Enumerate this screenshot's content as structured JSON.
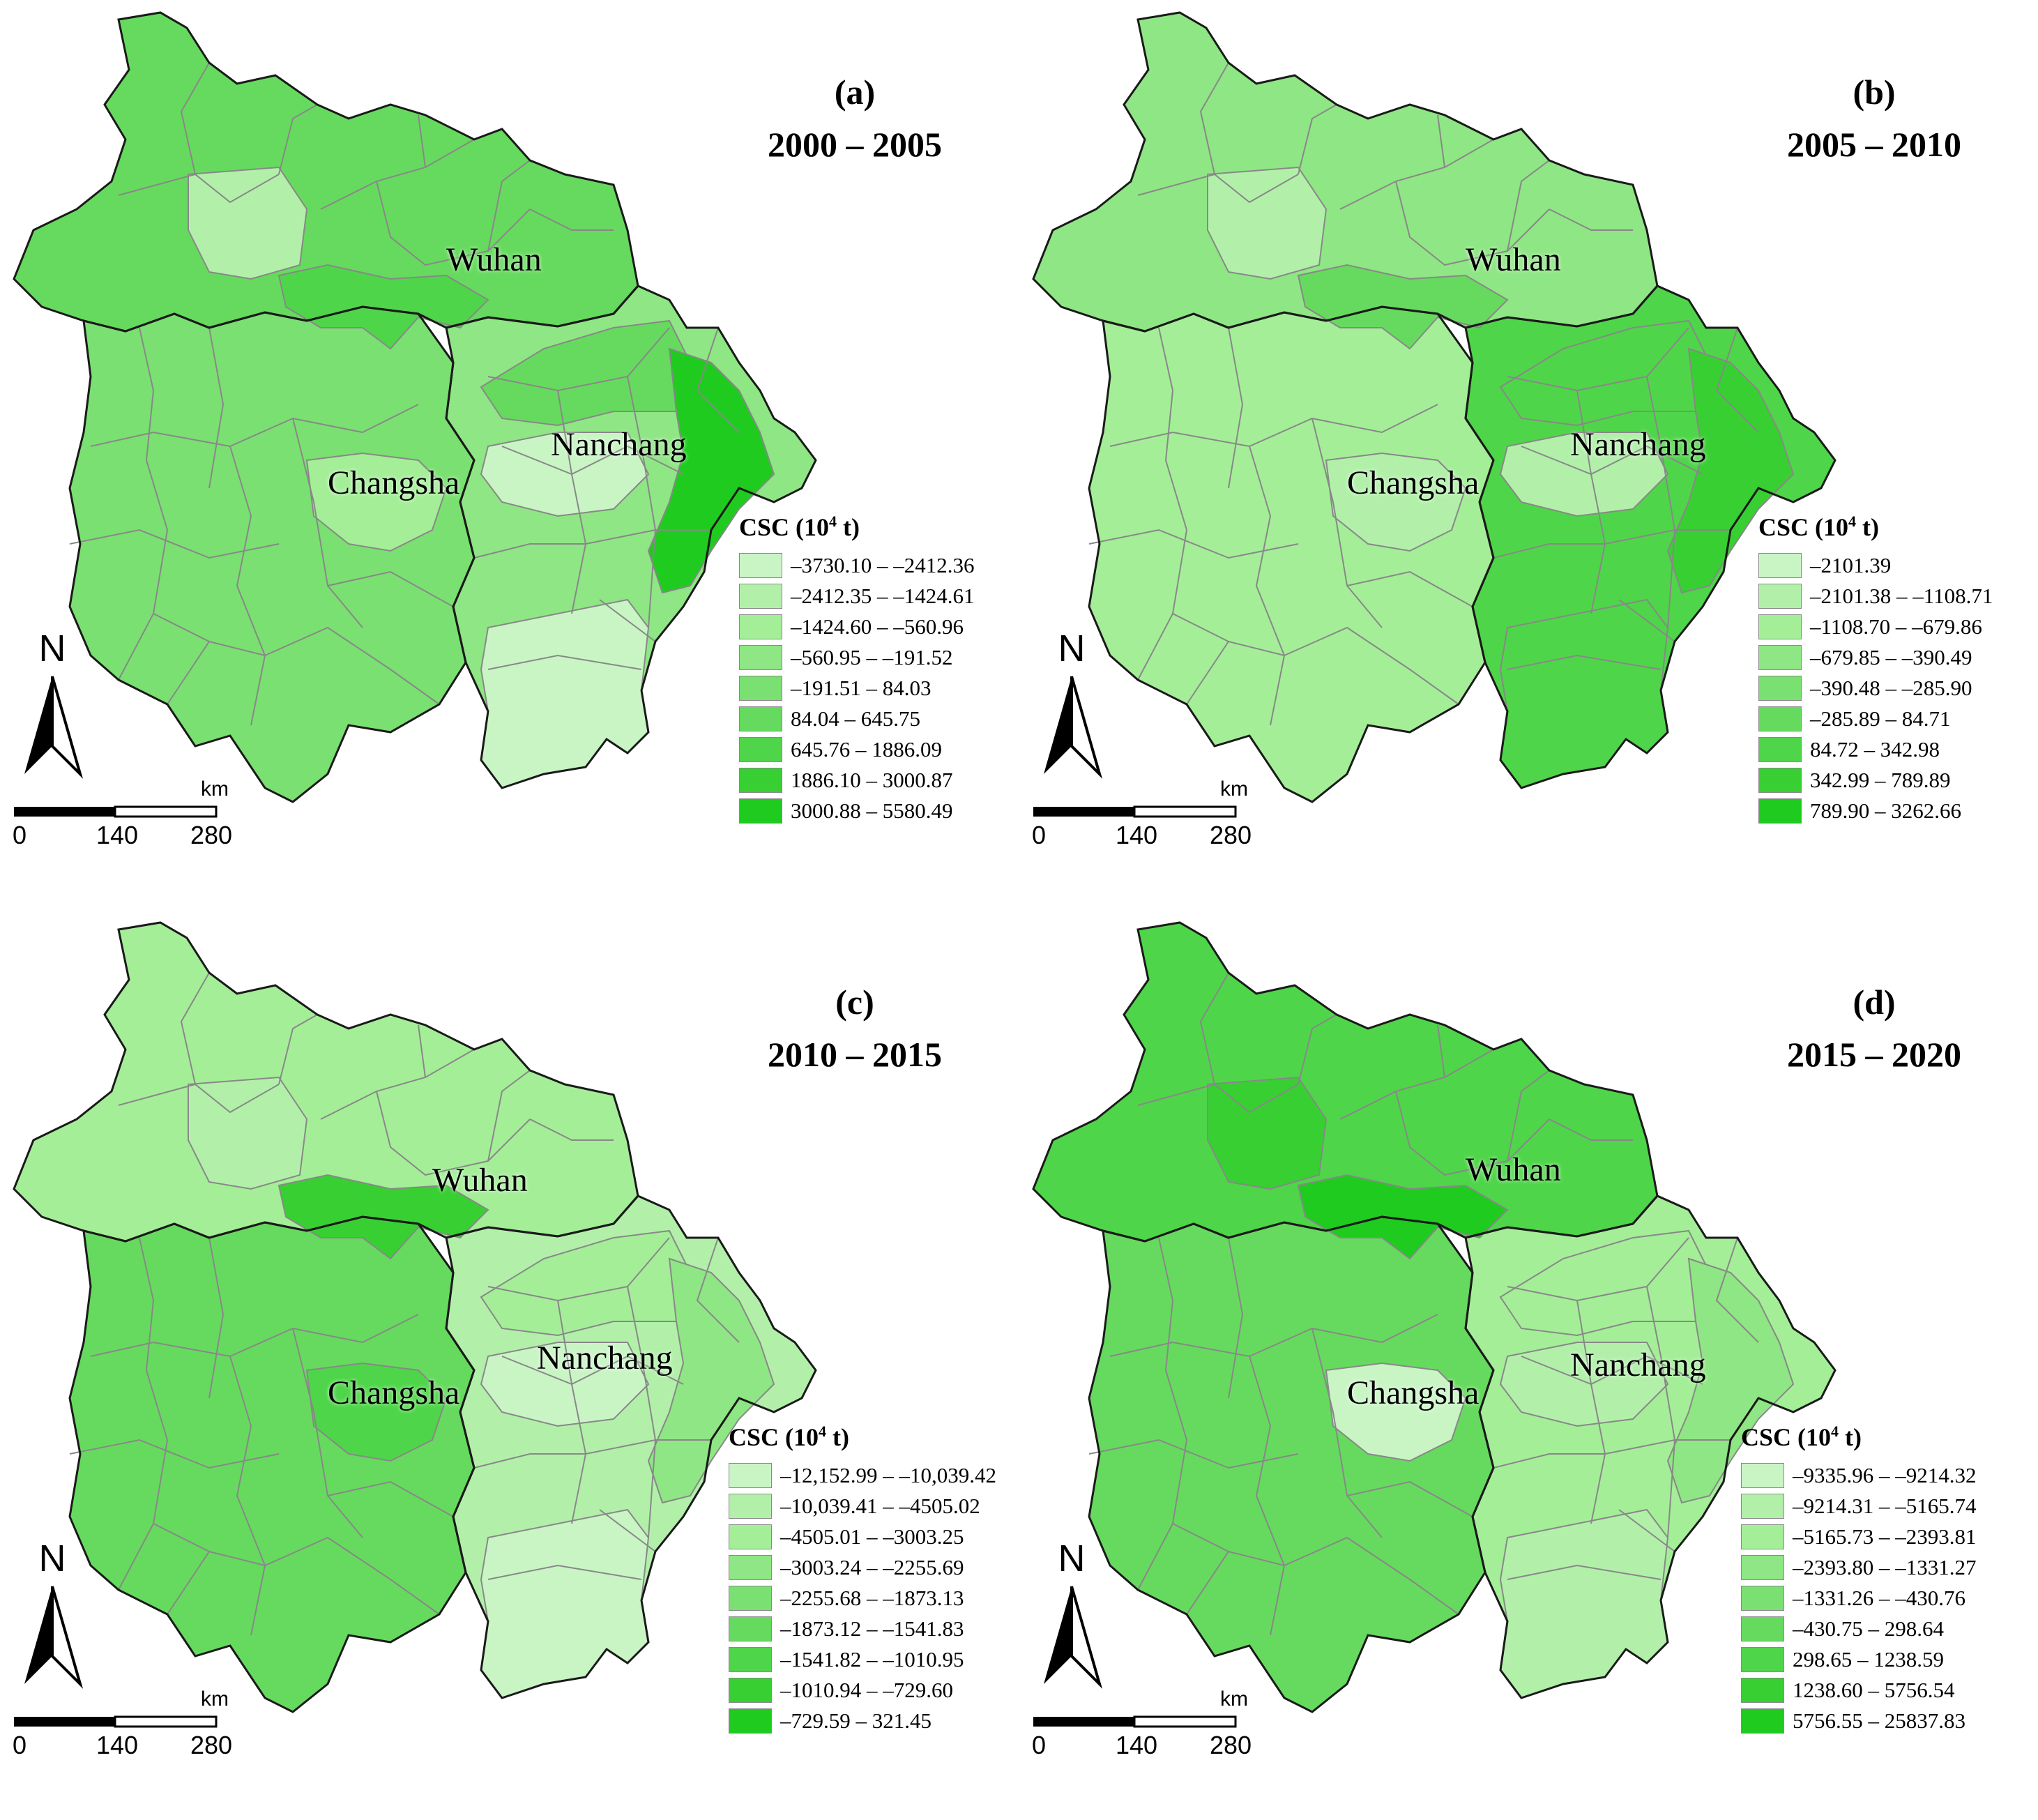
{
  "colors": [
    "#c9f5c5",
    "#b2f0aa",
    "#a4ee98",
    "#8fe684",
    "#7ae071",
    "#66da5e",
    "#4fd549",
    "#38cf33",
    "#1fcb1f"
  ],
  "border_color": "#888888",
  "outer_border": "#1a1a1a",
  "north_label": "N",
  "scale": {
    "unit": "km",
    "ticks": [
      "0",
      "140",
      "280"
    ]
  },
  "cities": [
    "Wuhan",
    "Changsha",
    "Nanchang"
  ],
  "panels": [
    {
      "letter": "(a)",
      "period": "2000 – 2005",
      "legend_title": "CSC (10",
      "legend_sup": "4",
      "legend_unit": " t)",
      "classes": [
        "–3730.10 – –2412.36",
        "–2412.35 – –1424.61",
        "–1424.60 – –560.96",
        "–560.95 – –191.52",
        "–191.51 – 84.03",
        "84.04 – 645.75",
        "645.76 – 1886.09",
        "1886.10 – 3000.87",
        "3000.88 – 5580.49"
      ],
      "region_shades": {
        "hubei": 5,
        "hunan": 4,
        "jiangxi": 3,
        "hubei_w": 1,
        "hubei_c": 6,
        "jiangxi_n": 5,
        "jiangxi_e": 8,
        "jiangxi_s": 0,
        "jiangxi_c": 0,
        "hunan_c": 2
      }
    },
    {
      "letter": "(b)",
      "period": "2005 – 2010",
      "legend_title": "CSC (10",
      "legend_sup": "4",
      "legend_unit": " t)",
      "classes": [
        "–2101.39",
        "–2101.38 – –1108.71",
        "–1108.70 – –679.86",
        "–679.85 – –390.49",
        "–390.48 – –285.90",
        "–285.89 – 84.71",
        "84.72 – 342.98",
        "342.99 – 789.89",
        "789.90 – 3262.66"
      ],
      "region_shades": {
        "hubei": 3,
        "hunan": 2,
        "jiangxi": 6,
        "hubei_w": 1,
        "hubei_c": 5,
        "jiangxi_n": 6,
        "jiangxi_e": 7,
        "jiangxi_s": 6,
        "jiangxi_c": 1,
        "hunan_c": 1
      }
    },
    {
      "letter": "(c)",
      "period": "2010 – 2015",
      "legend_title": "CSC (10",
      "legend_sup": "4",
      "legend_unit": " t)",
      "classes": [
        "–12,152.99 – –10,039.42",
        "–10,039.41 – –4505.02",
        "–4505.01 – –3003.25",
        "–3003.24 – –2255.69",
        "–2255.68 – –1873.13",
        "–1873.12 – –1541.83",
        "–1541.82 – –1010.95",
        "–1010.94 – –729.60",
        "–729.59 – 321.45"
      ],
      "region_shades": {
        "hubei": 2,
        "hunan": 5,
        "jiangxi": 1,
        "hubei_w": 1,
        "hubei_c": 7,
        "jiangxi_n": 2,
        "jiangxi_e": 3,
        "jiangxi_s": 0,
        "jiangxi_c": 0,
        "hunan_c": 6
      }
    },
    {
      "letter": "(d)",
      "period": "2015 – 2020",
      "legend_title": "CSC (10",
      "legend_sup": "4",
      "legend_unit": " t)",
      "classes": [
        "–9335.96 – –9214.32",
        "–9214.31 – –5165.74",
        "–5165.73 – –2393.81",
        "–2393.80 – –1331.27",
        "–1331.26 – –430.76",
        "–430.75 – 298.64",
        "298.65 – 1238.59",
        "1238.60 – 5756.54",
        "5756.55 – 25837.83"
      ],
      "region_shades": {
        "hubei": 6,
        "hunan": 5,
        "jiangxi": 2,
        "hubei_w": 7,
        "hubei_c": 8,
        "jiangxi_n": 2,
        "jiangxi_e": 3,
        "jiangxi_s": 1,
        "jiangxi_c": 1,
        "hunan_c": 0
      }
    }
  ]
}
